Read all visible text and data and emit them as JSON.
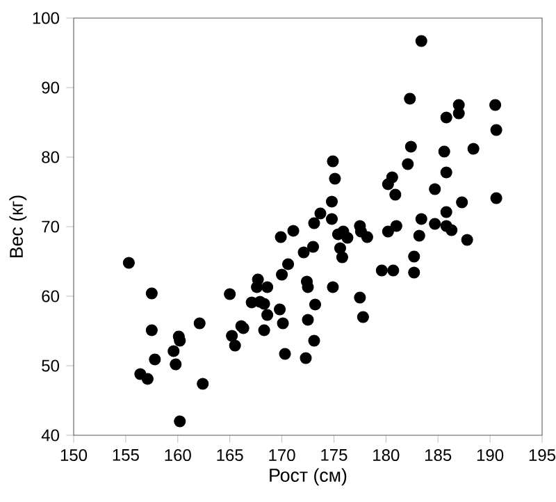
{
  "chart_data": {
    "type": "scatter",
    "xlabel": "Рост (см)",
    "ylabel": "Вес (кг)",
    "xlim": [
      150,
      195
    ],
    "ylim": [
      40,
      100
    ],
    "xticks": [
      150,
      155,
      160,
      165,
      170,
      175,
      180,
      185,
      190,
      195
    ],
    "yticks": [
      40,
      50,
      60,
      70,
      80,
      90,
      100
    ],
    "color": "#000000",
    "x": [
      155.3,
      157.5,
      165.0,
      157.5,
      162.1,
      160.1,
      160.2,
      159.6,
      157.8,
      159.8,
      156.4,
      157.1,
      162.4,
      160.2,
      165.2,
      165.5,
      166.1,
      166.3,
      167.1,
      167.9,
      167.7,
      174.9,
      175.1,
      174.8,
      173.7,
      173.1,
      174.8,
      171.1,
      169.9,
      175.4,
      175.9,
      176.3,
      175.6,
      175.8,
      177.5,
      177.6,
      178.2,
      180.2,
      179.6,
      173.0,
      172.1,
      170.6,
      170.0,
      167.6,
      168.6,
      172.4,
      172.5,
      174.9,
      168.3,
      168.6,
      169.8,
      173.2,
      177.5,
      177.8,
      170.1,
      172.5,
      168.3,
      173.1,
      170.3,
      172.3,
      183.4,
      182.3,
      187.0,
      187.0,
      185.8,
      190.5,
      190.6,
      182.4,
      185.6,
      188.4,
      182.1,
      185.8,
      180.6,
      180.2,
      180.9,
      184.7,
      187.3,
      190.6,
      185.8,
      183.4,
      184.7,
      185.8,
      186.3,
      181.0,
      183.2,
      187.8,
      182.7,
      180.7,
      182.7
    ],
    "values": [
      64.8,
      60.4,
      60.3,
      55.1,
      56.1,
      54.2,
      53.6,
      52.1,
      50.9,
      50.2,
      48.8,
      48.1,
      47.4,
      42.0,
      54.3,
      52.9,
      55.7,
      55.4,
      59.1,
      59.2,
      62.4,
      79.4,
      76.9,
      73.6,
      71.9,
      70.5,
      71.1,
      69.4,
      68.5,
      68.9,
      69.3,
      68.4,
      66.9,
      65.6,
      70.1,
      69.3,
      68.5,
      69.3,
      63.7,
      67.1,
      66.3,
      64.6,
      63.1,
      61.3,
      61.3,
      62.1,
      61.3,
      61.3,
      58.9,
      57.3,
      58.1,
      58.8,
      59.8,
      57.0,
      56.1,
      56.6,
      55.1,
      53.6,
      51.7,
      51.1,
      96.7,
      88.4,
      87.5,
      86.3,
      85.7,
      87.5,
      83.9,
      81.5,
      80.8,
      81.2,
      79.0,
      77.8,
      77.1,
      76.1,
      74.6,
      75.4,
      73.5,
      74.1,
      72.1,
      71.1,
      70.4,
      70.1,
      69.5,
      70.1,
      68.7,
      68.1,
      65.7,
      63.7,
      63.4
    ]
  }
}
